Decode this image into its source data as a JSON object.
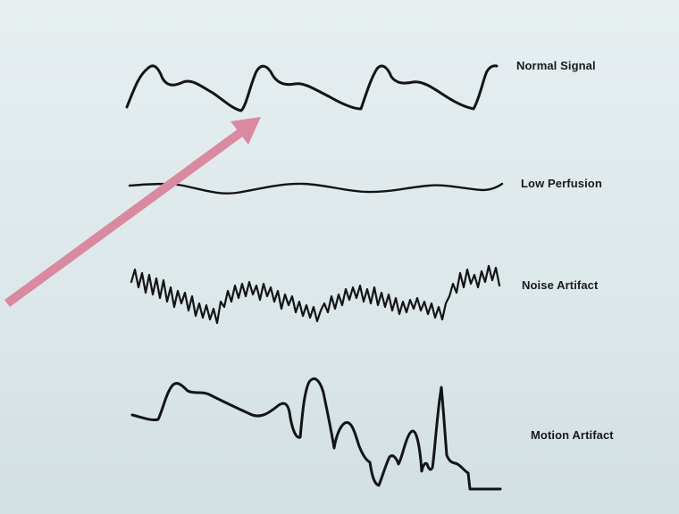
{
  "traces": [
    {
      "id": "normal",
      "label": "Normal Signal",
      "color": "#141414"
    },
    {
      "id": "low",
      "label": "Low Perfusion",
      "color": "#141414"
    },
    {
      "id": "noise",
      "label": "Noise Artifact",
      "color": "#141414"
    },
    {
      "id": "motion",
      "label": "Motion Artifact",
      "color": "#141414"
    }
  ],
  "arrow": {
    "color": "#d98aa0",
    "points_to": "normal"
  }
}
